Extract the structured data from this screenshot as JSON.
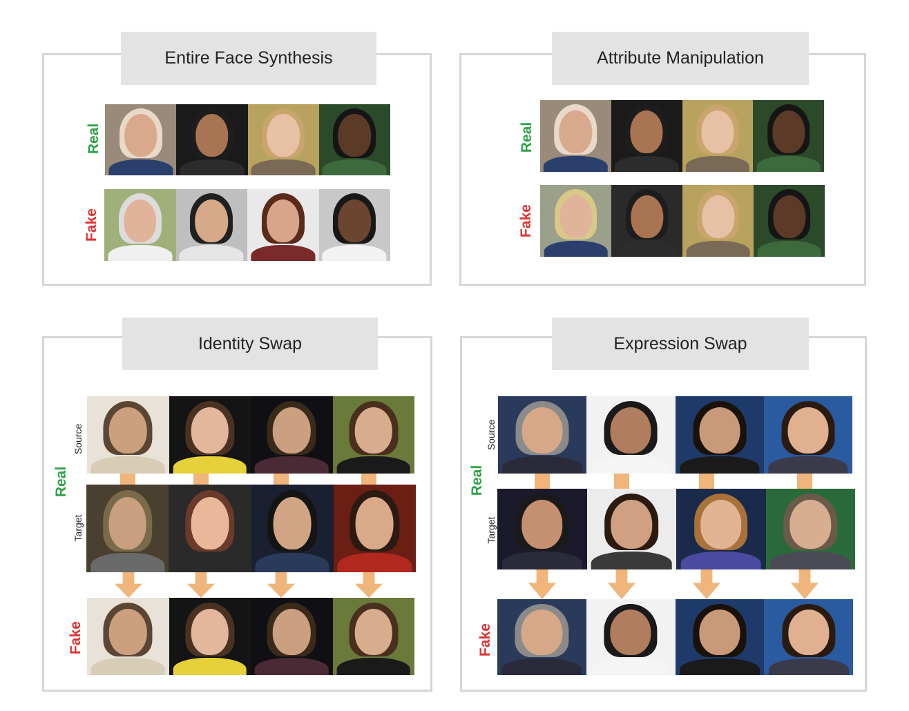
{
  "panels": {
    "entire_face_synthesis": {
      "title": "Entire Face Synthesis",
      "real_label": "Real",
      "fake_label": "Fake"
    },
    "attribute_manipulation": {
      "title": "Attribute Manipulation",
      "real_label": "Real",
      "fake_label": "Fake"
    },
    "identity_swap": {
      "title": "Identity Swap",
      "real_label": "Real",
      "fake_label": "Fake",
      "source_label": "Source",
      "target_label": "Target"
    },
    "expression_swap": {
      "title": "Expression Swap",
      "real_label": "Real",
      "fake_label": "Fake",
      "source_label": "Source",
      "target_label": "Target"
    }
  },
  "colors": {
    "real": "#2fa24a",
    "fake": "#e13232",
    "arrow": "#f0b57a",
    "panel_border": "#d6d6d6",
    "title_bg": "#e3e3e3"
  }
}
